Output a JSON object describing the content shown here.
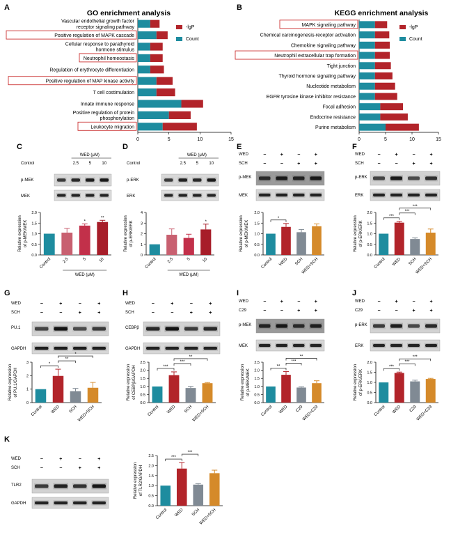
{
  "panels": {
    "A": "A",
    "B": "B",
    "C": "C",
    "D": "D",
    "E": "E",
    "F": "F",
    "G": "G",
    "H": "H",
    "I": "I",
    "J": "J",
    "K": "K"
  },
  "colors": {
    "count": "#1e8c9f",
    "logp": "#b2242a",
    "bar_control": "#1e8c9f",
    "bar_wed": "#b2242a",
    "bar_sch": "#808a94",
    "bar_combo": "#d58a2a",
    "bar_grad": [
      "#1e8c9f",
      "#c86070",
      "#c2304a",
      "#a71d29"
    ]
  },
  "chart_data": [
    {
      "id": "A",
      "type": "bar",
      "orientation": "horizontal",
      "stacked": true,
      "title": "GO enrichment analysis",
      "categories": [
        "Vascular endothelial growth factor receptor signaling pathway",
        "Positive regulation of MAPK cascade",
        "Cellular response to parathyroid hormone stimulus",
        "Neutrophil homeostasis",
        "Regulation of erythrocyte differentiation",
        "Positive regulation of MAP kinase activity",
        "T cell costimulation",
        "Innate immune response",
        "Positive regulation of protein phosphorylation",
        "Leukocyte migration"
      ],
      "highlighted": [
        1,
        3,
        5,
        9
      ],
      "series": [
        {
          "name": "Count",
          "values": [
            2,
            3,
            2,
            2,
            2,
            3,
            3,
            7,
            5,
            4
          ]
        },
        {
          "name": "-lgP",
          "values": [
            1.5,
            1.8,
            2.0,
            2.0,
            2.2,
            2.6,
            3.0,
            3.5,
            3.5,
            5.5
          ]
        }
      ],
      "xlim": [
        0,
        15
      ],
      "xticks": [
        "0",
        "5",
        "10",
        "15"
      ],
      "legend": [
        "-lgP",
        "Count"
      ]
    },
    {
      "id": "B",
      "type": "bar",
      "orientation": "horizontal",
      "stacked": true,
      "title": "KEGG enrichment analysis",
      "categories": [
        "MAPK signaling pathway",
        "Chemical carcinogenesis-receptor activation",
        "Chemokine signaling pathway",
        "Neutrophil extracellular trap formation",
        "Tight junction",
        "Thyroid hormone signaling pathway",
        "Nucleotide metabolism",
        "EGFR tyrosine kinase inhibitor resistance",
        "Focal adhesion",
        "Endocrine resistance",
        "Purine metabolism"
      ],
      "highlighted": [
        0,
        3
      ],
      "series": [
        {
          "name": "Count",
          "values": [
            3,
            3,
            3,
            3,
            3,
            3,
            3,
            3,
            4,
            4,
            5
          ]
        },
        {
          "name": "-lgP",
          "values": [
            2.3,
            2.7,
            2.8,
            2.8,
            3.0,
            3.3,
            3.8,
            4.2,
            4.3,
            5.2,
            6.3
          ]
        }
      ],
      "xlim": [
        0,
        15
      ],
      "xticks": [
        "0",
        "5",
        "10",
        "15"
      ],
      "legend": [
        "-lgP",
        "Count"
      ]
    },
    {
      "id": "C",
      "type": "bar",
      "ylabel": "Relative expression\nof p-MEK/MEK",
      "categories": [
        "Control",
        "2.5",
        "5",
        "10"
      ],
      "values": [
        1.0,
        1.05,
        1.38,
        1.55
      ],
      "errors": [
        0,
        0.2,
        0.08,
        0.08
      ],
      "ylim": [
        0,
        2.0
      ],
      "yticks": [
        "0.0",
        "0.5",
        "1.0",
        "1.5",
        "2.0"
      ],
      "xgroup": "WED (μM)",
      "sig": [
        "",
        "",
        "*",
        "**"
      ]
    },
    {
      "id": "D",
      "type": "bar",
      "ylabel": "Relative expression\nof p-ERK/ERK",
      "categories": [
        "Control",
        "2.5",
        "5",
        "10"
      ],
      "values": [
        1.0,
        1.9,
        1.6,
        2.4
      ],
      "errors": [
        0,
        0.55,
        0.35,
        0.5
      ],
      "ylim": [
        0,
        4
      ],
      "yticks": [
        "0",
        "1",
        "2",
        "3",
        "4"
      ],
      "xgroup": "WED (μM)",
      "sig": [
        "",
        "",
        "",
        "*"
      ]
    },
    {
      "id": "E",
      "type": "bar",
      "ylabel": "Relative expression\nof p-MEK/MEK",
      "categories": [
        "Control",
        "WED",
        "SCH",
        "WED+SCH"
      ],
      "values": [
        1.0,
        1.32,
        1.07,
        1.35
      ],
      "errors": [
        0,
        0.16,
        0.13,
        0.11
      ],
      "ylim": [
        0,
        2.0
      ],
      "yticks": [
        "0.0",
        "0.5",
        "1.0",
        "1.5",
        "2.0"
      ],
      "brackets": [
        {
          "from": 0,
          "to": 1,
          "label": "*"
        }
      ]
    },
    {
      "id": "F",
      "type": "bar",
      "ylabel": "Relative expression\nof p-ERK/ERK",
      "categories": [
        "Control",
        "WED",
        "SCH",
        "WED+SCH"
      ],
      "values": [
        1.0,
        1.52,
        0.75,
        1.05
      ],
      "errors": [
        0,
        0.06,
        0.05,
        0.17
      ],
      "ylim": [
        0,
        2.0
      ],
      "yticks": [
        "0.0",
        "0.5",
        "1.0",
        "1.5",
        "2.0"
      ],
      "brackets": [
        {
          "from": 0,
          "to": 1,
          "label": "***"
        },
        {
          "from": 1,
          "to": 2,
          "label": "***"
        },
        {
          "from": 1,
          "to": 3,
          "label": "***"
        }
      ]
    },
    {
      "id": "G",
      "type": "bar",
      "ylabel": "Relative expression\nof PU.1/GAPDH",
      "categories": [
        "Control",
        "WED",
        "SCH",
        "WED+SCH"
      ],
      "values": [
        1.0,
        1.98,
        0.85,
        1.1
      ],
      "errors": [
        0,
        0.5,
        0.2,
        0.4
      ],
      "ylim": [
        0,
        3
      ],
      "yticks": [
        "0",
        "1",
        "2",
        "3"
      ],
      "brackets": [
        {
          "from": 0,
          "to": 1,
          "label": "*"
        },
        {
          "from": 1,
          "to": 2,
          "label": "**"
        },
        {
          "from": 1,
          "to": 3,
          "label": "*"
        }
      ]
    },
    {
      "id": "H",
      "type": "bar",
      "ylabel": "Relative expression\nof CEBPβ/GAPDH",
      "categories": [
        "Control",
        "WED",
        "SCH",
        "WED+SCH"
      ],
      "values": [
        1.0,
        1.7,
        0.9,
        1.2
      ],
      "errors": [
        0,
        0.2,
        0.1,
        0.04
      ],
      "ylim": [
        0,
        2.5
      ],
      "yticks": [
        "0.0",
        "0.5",
        "1.0",
        "1.5",
        "2.0",
        "2.5"
      ],
      "brackets": [
        {
          "from": 0,
          "to": 1,
          "label": "***"
        },
        {
          "from": 1,
          "to": 2,
          "label": "***"
        },
        {
          "from": 1,
          "to": 3,
          "label": "**"
        }
      ]
    },
    {
      "id": "I",
      "type": "bar",
      "ylabel": "Relative expression\nof p-MEK/MEK",
      "categories": [
        "Control",
        "WED",
        "C29",
        "WED+C29"
      ],
      "values": [
        1.0,
        1.72,
        0.93,
        1.2
      ],
      "errors": [
        0,
        0.2,
        0.05,
        0.15
      ],
      "ylim": [
        0,
        2.5
      ],
      "yticks": [
        "0.0",
        "0.5",
        "1.0",
        "1.5",
        "2.0",
        "2.5"
      ],
      "brackets": [
        {
          "from": 0,
          "to": 1,
          "label": "**"
        },
        {
          "from": 1,
          "to": 2,
          "label": "***"
        },
        {
          "from": 1,
          "to": 3,
          "label": "**"
        }
      ]
    },
    {
      "id": "J",
      "type": "bar",
      "ylabel": "Relative expression\nof p-ERK/ERK",
      "categories": [
        "Control",
        "WED",
        "C29",
        "WED+C29"
      ],
      "values": [
        1.0,
        1.47,
        1.05,
        1.17
      ],
      "errors": [
        0,
        0.04,
        0.06,
        0.03
      ],
      "ylim": [
        0,
        2.0
      ],
      "yticks": [
        "0.0",
        "0.5",
        "1.0",
        "1.5",
        "2.0"
      ],
      "brackets": [
        {
          "from": 0,
          "to": 1,
          "label": "***"
        },
        {
          "from": 1,
          "to": 2,
          "label": "***"
        },
        {
          "from": 1,
          "to": 3,
          "label": "***"
        }
      ]
    },
    {
      "id": "K",
      "type": "bar",
      "ylabel": "Relative expression\nof TLR2/GAPDH",
      "categories": [
        "Control",
        "WED",
        "SCH",
        "WED+SCH"
      ],
      "values": [
        1.0,
        1.85,
        1.05,
        1.62
      ],
      "errors": [
        0,
        0.3,
        0.05,
        0.15
      ],
      "ylim": [
        0,
        2.5
      ],
      "yticks": [
        "0.0",
        "0.5",
        "1.0",
        "1.5",
        "2.0",
        "2.5"
      ],
      "brackets": [
        {
          "from": 0,
          "to": 1,
          "label": "***"
        },
        {
          "from": 1,
          "to": 2,
          "label": "***"
        }
      ]
    }
  ],
  "blots": {
    "C": {
      "header_left": "Control",
      "header_group": "WED (μM)",
      "header_ticks": [
        "2.5",
        "5",
        "10"
      ],
      "rows": [
        "p-MEK",
        "MEK"
      ]
    },
    "D": {
      "header_left": "Control",
      "header_group": "WED (μM)",
      "header_ticks": [
        "2.5",
        "5",
        "10"
      ],
      "rows": [
        "p-ERK",
        "ERK"
      ]
    },
    "E": {
      "treat1": "WED",
      "treat2": "SCH",
      "signs1": [
        "−",
        "+",
        "−",
        "+"
      ],
      "signs2": [
        "−",
        "−",
        "+",
        "+"
      ],
      "rows": [
        "p-MEK",
        "MEK"
      ]
    },
    "F": {
      "treat1": "WED",
      "treat2": "SCH",
      "signs1": [
        "−",
        "+",
        "−",
        "+"
      ],
      "signs2": [
        "−",
        "−",
        "+",
        "+"
      ],
      "rows": [
        "p-ERK",
        "ERK"
      ]
    },
    "G": {
      "treat1": "WED",
      "treat2": "SCH",
      "signs1": [
        "−",
        "+",
        "−",
        "+"
      ],
      "signs2": [
        "−",
        "−",
        "+",
        "+"
      ],
      "rows": [
        "PU.1",
        "GAPDH"
      ]
    },
    "H": {
      "treat1": "WED",
      "treat2": "SCH",
      "signs1": [
        "−",
        "+",
        "−",
        "+"
      ],
      "signs2": [
        "−",
        "−",
        "+",
        "+"
      ],
      "rows": [
        "CEBPβ",
        "GAPDH"
      ]
    },
    "I": {
      "treat1": "WED",
      "treat2": "C29",
      "signs1": [
        "−",
        "+",
        "−",
        "+"
      ],
      "signs2": [
        "−",
        "−",
        "+",
        "+"
      ],
      "rows": [
        "p-MEK",
        "MEK"
      ]
    },
    "J": {
      "treat1": "WED",
      "treat2": "C29",
      "signs1": [
        "−",
        "+",
        "−",
        "+"
      ],
      "signs2": [
        "−",
        "−",
        "+",
        "+"
      ],
      "rows": [
        "p-ERK",
        "ERK"
      ]
    },
    "K": {
      "treat1": "WED",
      "treat2": "SCH",
      "signs1": [
        "−",
        "+",
        "−",
        "+"
      ],
      "signs2": [
        "−",
        "−",
        "+",
        "+"
      ],
      "rows": [
        "TLR2",
        "GAPDH"
      ]
    }
  }
}
